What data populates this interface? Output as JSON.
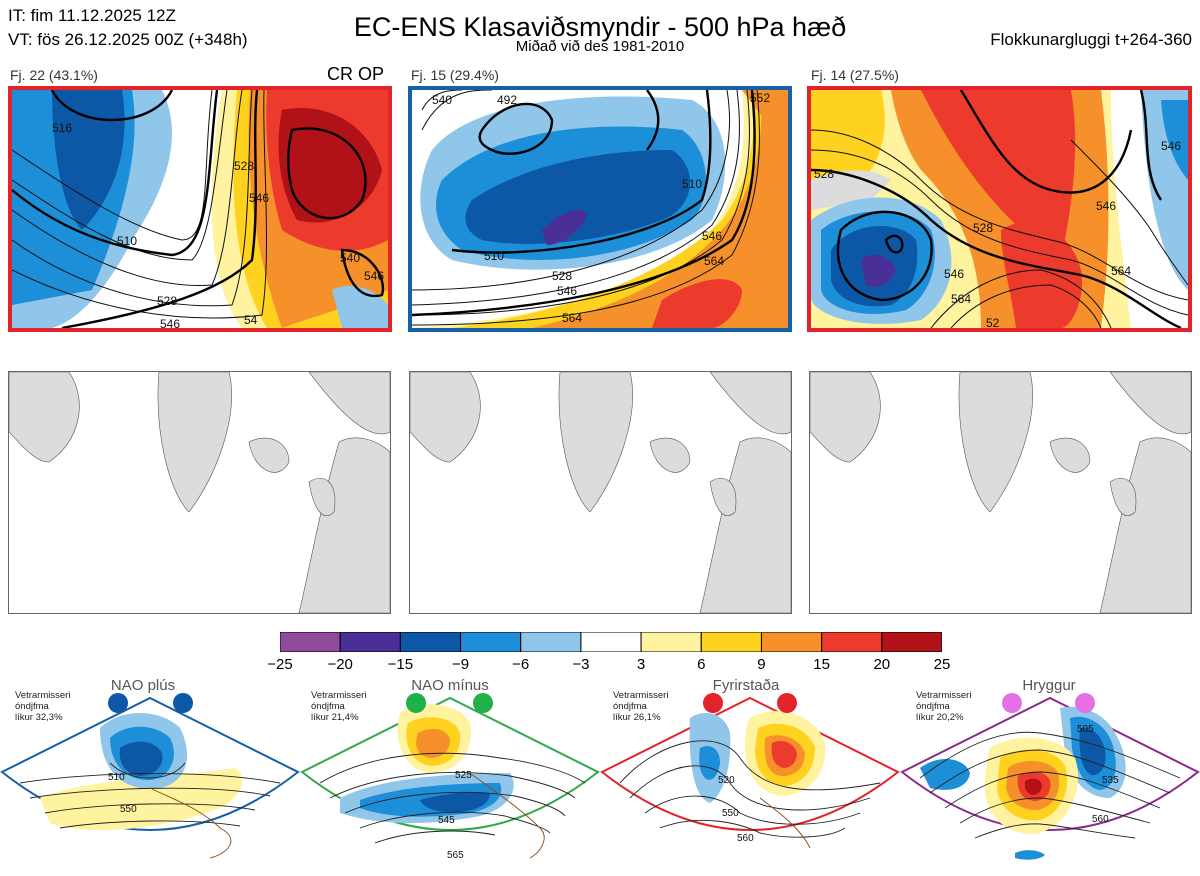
{
  "header": {
    "it_line": "IT: fim 11.12.2025 12Z",
    "vt_line": "VT: fös 26.12.2025 00Z  (+348h)",
    "title": "EC-ENS Klasaviðsmyndir - 500 hPa hæð",
    "subtitle": "Miðað við des 1981-2010",
    "window": "Flokkunargluggi t+264-360"
  },
  "clusters": [
    {
      "label": "Fj. 22 (43.1%)",
      "tag": "CR OP",
      "frame_color": "#e3232a",
      "contour_labels": [
        "516",
        "528",
        "546",
        "510",
        "528",
        "546",
        "540",
        "546",
        "54"
      ]
    },
    {
      "label": "Fj. 15 (29.4%)",
      "frame_color": "#1560a8",
      "contour_labels": [
        "540",
        "492",
        "510",
        "528",
        "546",
        "564",
        "510",
        "546",
        "564",
        "552"
      ]
    },
    {
      "label": "Fj. 14 (27.5%)",
      "frame_color": "#e3232a",
      "contour_labels": [
        "528",
        "546",
        "564",
        "528",
        "546",
        "564",
        "52",
        "546"
      ]
    }
  ],
  "colorbar": {
    "ticks": [
      "−25",
      "−20",
      "−15",
      "−9",
      "−6",
      "−3",
      "3",
      "6",
      "9",
      "15",
      "20",
      "25"
    ],
    "colors": [
      "#8e4b9c",
      "#4a2f96",
      "#0d58a6",
      "#1d8fd8",
      "#8fc6ea",
      "#ffffff",
      "#fff3a0",
      "#ffd21f",
      "#f5902a",
      "#ec3b2c",
      "#b11218"
    ]
  },
  "regimes": [
    {
      "title": "NAO plús",
      "note": [
        "Vetrarmisseri",
        "óndjfma",
        "líkur 32,3%"
      ],
      "color": "#1560a8",
      "dot": "#0d58a6",
      "labels": [
        "510",
        "550"
      ]
    },
    {
      "title": "NAO mínus",
      "note": [
        "Vetrarmisseri",
        "óndjfma",
        "líkur 21,4%"
      ],
      "color": "#2ea84a",
      "dot": "#20b04a",
      "labels": [
        "525",
        "545",
        "565"
      ]
    },
    {
      "title": "Fyrirstaða",
      "note": [
        "Vetrarmisseri",
        "óndjfma",
        "líkur 26,1%"
      ],
      "color": "#e3232a",
      "dot": "#e3232a",
      "labels": [
        "520",
        "550",
        "560"
      ]
    },
    {
      "title": "Hryggur",
      "note": [
        "Vetrarmisseri",
        "óndjfma",
        "líkur 20,2%"
      ],
      "color": "#8e2a8e",
      "dot": "#e56fe5",
      "labels": [
        "505",
        "535",
        "560"
      ]
    }
  ]
}
